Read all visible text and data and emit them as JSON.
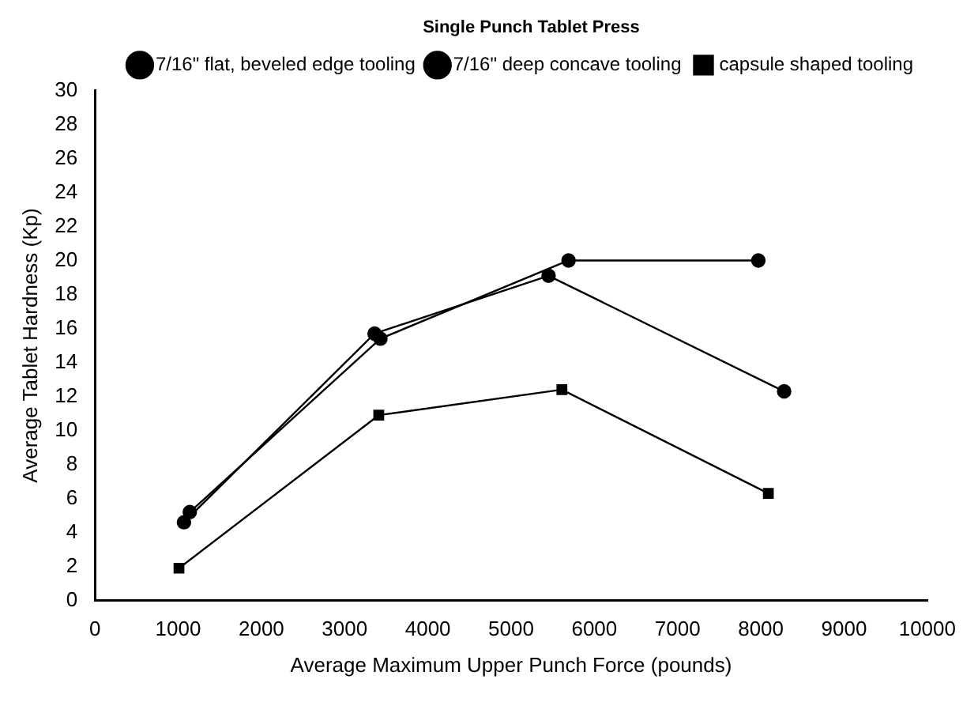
{
  "chart_data": {
    "type": "line",
    "legend_title": "Single Punch Tablet Press",
    "xlabel": "Average Maximum Upper Punch Force (pounds)",
    "ylabel": "Average Tablet Hardness (Kp)",
    "xlim": [
      0,
      10000
    ],
    "xticks": [
      0,
      1000,
      2000,
      3000,
      4000,
      5000,
      6000,
      7000,
      8000,
      9000,
      10000
    ],
    "ylim": [
      0,
      30
    ],
    "yticks": [
      0,
      2,
      4,
      6,
      8,
      10,
      12,
      14,
      16,
      18,
      20,
      22,
      24,
      26,
      28,
      30
    ],
    "grid": false,
    "legend": "top right",
    "line_style": "solid",
    "series": [
      {
        "name": "7/16\" flat, beveled edge tooling",
        "color": "#000000",
        "marker": "circle",
        "x": [
          1140,
          3430,
          5690,
          7970
        ],
        "values": [
          5.2,
          15.4,
          20,
          20
        ]
      },
      {
        "name": "7/16\" deep concave tooling",
        "color": "#000000",
        "marker": "circle",
        "x": [
          1070,
          3360,
          5450,
          8280
        ],
        "values": [
          4.6,
          15.7,
          19.1,
          12.3
        ]
      },
      {
        "name": "capsule shaped tooling",
        "color": "#000000",
        "marker": "square",
        "x": [
          1010,
          3410,
          5610,
          8090
        ],
        "values": [
          1.9,
          10.9,
          12.4,
          6.3
        ]
      }
    ]
  }
}
